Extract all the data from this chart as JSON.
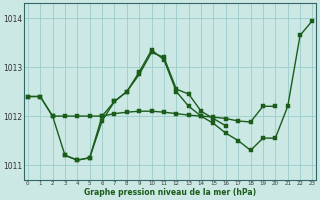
{
  "xlabel": "Graphe pression niveau de la mer (hPa)",
  "background_color": "#cce8e4",
  "grid_color": "#99cccc",
  "line_color": "#1a5c1a",
  "x": [
    0,
    1,
    2,
    3,
    4,
    5,
    6,
    7,
    8,
    9,
    10,
    11,
    12,
    13,
    14,
    15,
    16,
    17,
    18,
    19,
    20,
    21,
    22,
    23
  ],
  "series_A": [
    1012.4,
    1012.4,
    1012.0,
    1011.2,
    1011.1,
    1011.15,
    1011.9,
    1012.3,
    1012.5,
    1012.85,
    1013.3,
    1013.2,
    1012.55,
    1012.45,
    1012.1,
    1011.95,
    1011.8,
    null,
    null,
    null,
    null,
    null,
    null,
    null
  ],
  "series_B": [
    null,
    null,
    null,
    1011.2,
    1011.1,
    1011.15,
    1012.0,
    1012.3,
    1012.5,
    1012.9,
    1013.35,
    1013.15,
    1012.5,
    1012.2,
    1012.0,
    1011.85,
    1011.65,
    1011.5,
    1011.3,
    1011.55,
    1011.55,
    1012.2,
    1013.65,
    1013.95
  ],
  "series_C": [
    1012.4,
    1012.4,
    1012.0,
    1012.0,
    1012.0,
    1012.0,
    1012.0,
    1012.05,
    1012.08,
    1012.1,
    1012.1,
    1012.08,
    1012.05,
    1012.02,
    1012.0,
    1011.98,
    1011.95,
    1011.9,
    1011.88,
    1012.2,
    1012.2,
    null,
    null,
    null
  ],
  "ylim": [
    1010.7,
    1014.3
  ],
  "yticks": [
    1011,
    1012,
    1013,
    1014
  ],
  "xlim": [
    -0.3,
    23.3
  ]
}
